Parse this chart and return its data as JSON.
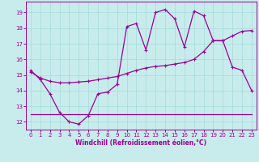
{
  "xlabel": "Windchill (Refroidissement éolien,°C)",
  "bg_color": "#c8ecec",
  "line_color": "#990099",
  "grid_color": "#aadddd",
  "x_ticks": [
    0,
    1,
    2,
    3,
    4,
    5,
    6,
    7,
    8,
    9,
    10,
    11,
    12,
    13,
    14,
    15,
    16,
    17,
    18,
    19,
    20,
    21,
    22,
    23
  ],
  "y_ticks": [
    12,
    13,
    14,
    15,
    16,
    17,
    18,
    19
  ],
  "ylim": [
    11.5,
    19.7
  ],
  "xlim": [
    -0.5,
    23.5
  ],
  "line1_x": [
    0,
    1,
    2,
    3,
    4,
    5,
    6,
    7,
    8,
    9,
    10,
    11,
    12,
    13,
    14,
    15,
    16,
    17,
    18,
    19,
    20,
    21,
    22,
    23
  ],
  "line1_y": [
    15.3,
    14.7,
    13.8,
    12.6,
    12.0,
    11.85,
    12.4,
    13.8,
    13.9,
    14.4,
    18.1,
    18.3,
    16.6,
    19.0,
    19.2,
    18.6,
    16.8,
    19.1,
    18.8,
    17.2,
    17.2,
    15.5,
    15.3,
    14.0
  ],
  "line2_x": [
    0,
    1,
    2,
    3,
    4,
    5,
    6,
    7,
    8,
    9,
    10,
    11,
    12,
    13,
    14,
    15,
    16,
    17,
    18,
    19,
    20,
    21,
    22,
    23
  ],
  "line2_y": [
    15.2,
    14.8,
    14.6,
    14.5,
    14.5,
    14.55,
    14.6,
    14.7,
    14.8,
    14.9,
    15.1,
    15.3,
    15.45,
    15.55,
    15.6,
    15.7,
    15.8,
    16.0,
    16.5,
    17.2,
    17.2,
    17.5,
    17.8,
    17.85
  ],
  "line3_x": [
    0,
    1,
    2,
    3,
    4,
    5,
    6,
    7,
    8,
    9,
    10,
    11,
    12,
    13,
    14,
    15,
    16,
    17,
    18,
    19,
    20,
    21,
    22,
    23
  ],
  "line3_y": [
    12.5,
    12.5,
    12.5,
    12.5,
    12.5,
    12.5,
    12.5,
    12.5,
    12.5,
    12.5,
    12.5,
    12.5,
    12.5,
    12.5,
    12.5,
    12.5,
    12.5,
    12.5,
    12.5,
    12.5,
    12.5,
    12.5,
    12.5,
    12.5
  ]
}
